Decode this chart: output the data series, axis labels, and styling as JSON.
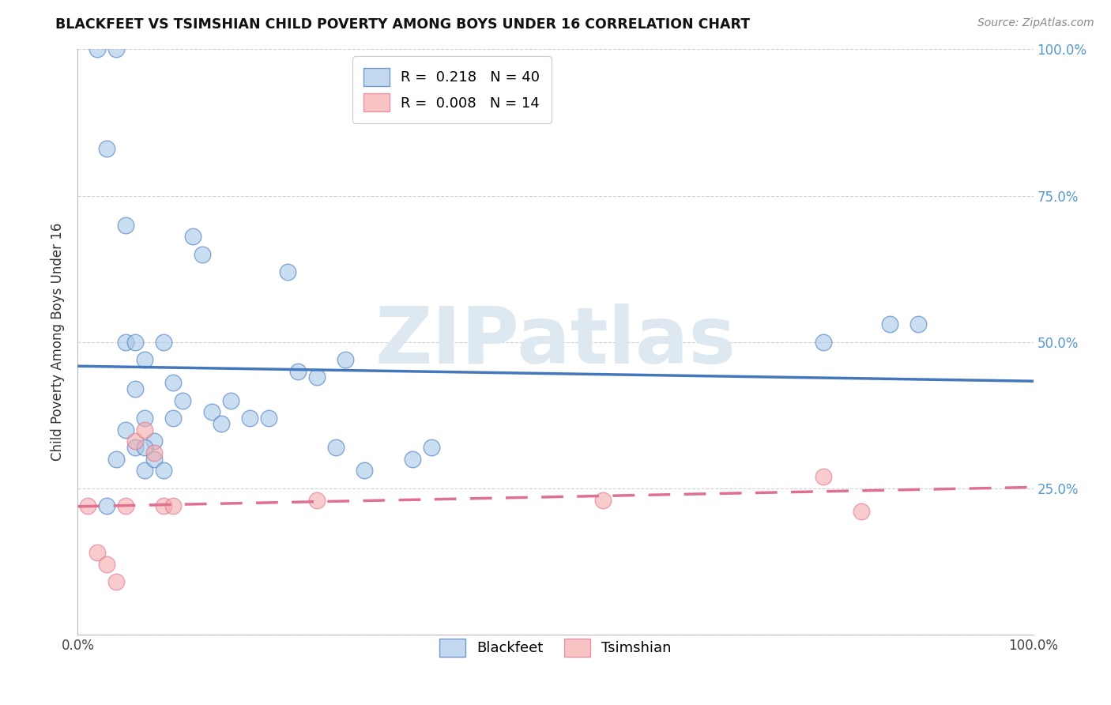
{
  "title": "BLACKFEET VS TSIMSHIAN CHILD POVERTY AMONG BOYS UNDER 16 CORRELATION CHART",
  "source": "Source: ZipAtlas.com",
  "ylabel": "Child Poverty Among Boys Under 16",
  "blackfeet_R": 0.218,
  "blackfeet_N": 40,
  "tsimshian_R": 0.008,
  "tsimshian_N": 14,
  "blackfeet_color": "#A8C8E8",
  "tsimshian_color": "#F4AAAA",
  "blackfeet_line_color": "#4477BB",
  "tsimshian_line_color": "#E07090",
  "blackfeet_x": [
    0.03,
    0.04,
    0.05,
    0.06,
    0.06,
    0.07,
    0.07,
    0.08,
    0.09,
    0.1,
    0.1,
    0.11,
    0.12,
    0.13,
    0.14,
    0.15,
    0.16,
    0.18,
    0.2,
    0.22,
    0.23,
    0.25,
    0.27,
    0.3,
    0.35,
    0.37,
    0.02,
    0.03,
    0.04,
    0.05,
    0.05,
    0.06,
    0.07,
    0.07,
    0.08,
    0.09,
    0.28,
    0.78,
    0.85,
    0.88
  ],
  "blackfeet_y": [
    0.22,
    0.3,
    0.35,
    0.42,
    0.32,
    0.47,
    0.37,
    0.33,
    0.5,
    0.43,
    0.37,
    0.4,
    0.68,
    0.65,
    0.38,
    0.36,
    0.4,
    0.37,
    0.37,
    0.62,
    0.45,
    0.44,
    0.32,
    0.28,
    0.3,
    0.32,
    1.0,
    0.83,
    1.0,
    0.7,
    0.5,
    0.5,
    0.32,
    0.28,
    0.3,
    0.28,
    0.47,
    0.5,
    0.53,
    0.53
  ],
  "tsimshian_x": [
    0.01,
    0.02,
    0.03,
    0.04,
    0.05,
    0.06,
    0.07,
    0.08,
    0.09,
    0.1,
    0.25,
    0.55,
    0.78,
    0.82
  ],
  "tsimshian_y": [
    0.22,
    0.14,
    0.12,
    0.09,
    0.22,
    0.33,
    0.35,
    0.31,
    0.22,
    0.22,
    0.23,
    0.23,
    0.27,
    0.21
  ],
  "xlim": [
    0.0,
    1.0
  ],
  "ylim": [
    0.0,
    1.0
  ],
  "xticks": [
    0.0,
    0.1,
    0.2,
    0.3,
    0.4,
    0.5,
    0.6,
    0.7,
    0.8,
    0.9,
    1.0
  ],
  "xticklabels_show": [
    "0.0%",
    "100.0%"
  ],
  "xticklabels_pos": [
    0.0,
    1.0
  ],
  "yticks": [
    0.0,
    0.25,
    0.5,
    0.75,
    1.0
  ],
  "right_ytick_labels": [
    "25.0%",
    "50.0%",
    "75.0%",
    "100.0%"
  ],
  "right_ytick_pos": [
    0.25,
    0.5,
    0.75,
    1.0
  ],
  "grid_color": "#CCCCCC",
  "background_color": "#FFFFFF",
  "watermark_color": "#DDE8F0"
}
